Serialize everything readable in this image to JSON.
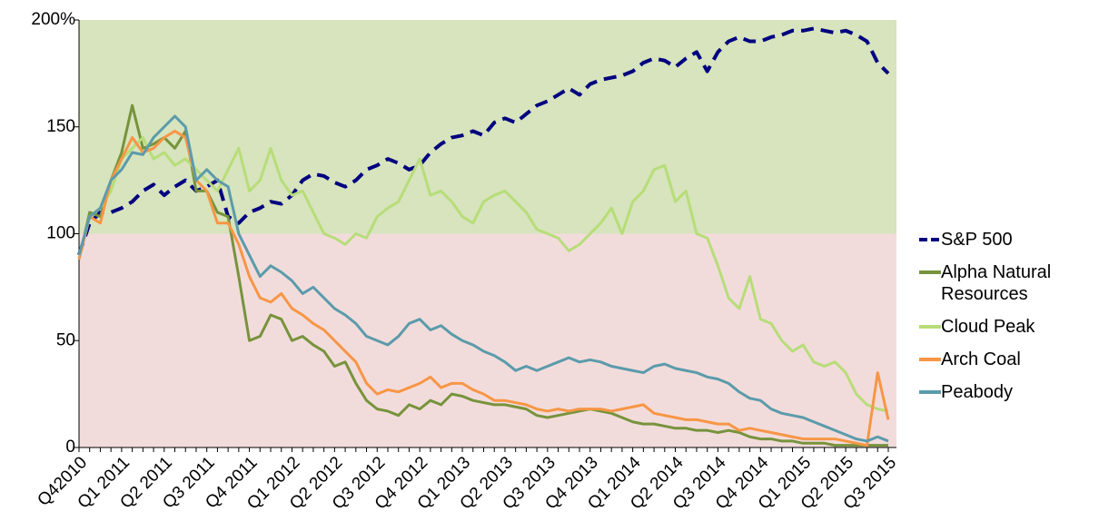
{
  "chart_data": {
    "type": "line",
    "categories": [
      "Q42010",
      null,
      null,
      null,
      "Q1 2011",
      null,
      null,
      null,
      "Q2 2011",
      null,
      null,
      null,
      "Q3 2011",
      null,
      null,
      null,
      "Q4 2011",
      null,
      null,
      null,
      "Q1 2012",
      null,
      null,
      null,
      "Q2 2012",
      null,
      null,
      null,
      "Q3 2012",
      null,
      null,
      null,
      "Q4 2012",
      null,
      null,
      null,
      "Q1 2013",
      null,
      null,
      null,
      "Q2 2013",
      null,
      null,
      null,
      "Q3 2013",
      null,
      null,
      null,
      "Q4 2013",
      null,
      null,
      null,
      "Q1 2014",
      null,
      null,
      null,
      "Q2 2014",
      null,
      null,
      null,
      "Q3 2014",
      null,
      null,
      null,
      "Q4 2014",
      null,
      null,
      null,
      "Q1 2015",
      null,
      null,
      null,
      "Q2 2015",
      null,
      null,
      null,
      "Q3 2015"
    ],
    "series": [
      {
        "name": "S&P 500",
        "color": "#000080",
        "dashed": true,
        "values": [
          90,
          105,
          110,
          110,
          112,
          115,
          120,
          123,
          118,
          122,
          125,
          120,
          122,
          125,
          108,
          105,
          110,
          112,
          115,
          114,
          118,
          125,
          128,
          127,
          124,
          122,
          125,
          130,
          132,
          135,
          133,
          130,
          132,
          138,
          142,
          145,
          146,
          148,
          146,
          152,
          154,
          152,
          156,
          160,
          162,
          165,
          168,
          165,
          170,
          172,
          173,
          174,
          176,
          180,
          182,
          181,
          178,
          182,
          185,
          176,
          185,
          190,
          192,
          190,
          190,
          192,
          193,
          195,
          195,
          196,
          195,
          194,
          195,
          193,
          190,
          180,
          175
        ]
      },
      {
        "name": "Alpha Natural Resources",
        "color": "#77933c",
        "values": [
          88,
          110,
          108,
          125,
          138,
          160,
          140,
          142,
          145,
          140,
          148,
          120,
          120,
          110,
          108,
          80,
          50,
          52,
          62,
          60,
          50,
          52,
          48,
          45,
          38,
          40,
          30,
          22,
          18,
          17,
          15,
          20,
          18,
          22,
          20,
          25,
          24,
          22,
          21,
          20,
          20,
          19,
          18,
          15,
          14,
          15,
          16,
          17,
          18,
          17,
          16,
          14,
          12,
          11,
          11,
          10,
          9,
          9,
          8,
          8,
          7,
          8,
          7,
          5,
          4,
          4,
          3,
          3,
          2,
          2,
          2,
          1,
          1,
          1,
          1,
          1,
          1
        ]
      },
      {
        "name": "Cloud Peak",
        "color": "#b7dd79",
        "values": [
          88,
          108,
          112,
          120,
          135,
          140,
          145,
          135,
          138,
          132,
          135,
          130,
          125,
          120,
          130,
          140,
          120,
          125,
          140,
          125,
          118,
          120,
          110,
          100,
          98,
          95,
          100,
          98,
          108,
          112,
          115,
          125,
          135,
          118,
          120,
          115,
          108,
          105,
          115,
          118,
          120,
          115,
          110,
          102,
          100,
          98,
          92,
          95,
          100,
          105,
          112,
          100,
          115,
          120,
          130,
          132,
          115,
          120,
          100,
          98,
          85,
          70,
          65,
          80,
          60,
          58,
          50,
          45,
          48,
          40,
          38,
          40,
          35,
          25,
          20,
          18,
          17
        ]
      },
      {
        "name": "Arch Coal",
        "color": "#f79646",
        "values": [
          88,
          108,
          105,
          125,
          135,
          145,
          138,
          140,
          145,
          148,
          145,
          125,
          120,
          105,
          105,
          95,
          80,
          70,
          68,
          72,
          65,
          62,
          58,
          55,
          50,
          45,
          40,
          30,
          25,
          27,
          26,
          28,
          30,
          33,
          28,
          30,
          30,
          27,
          25,
          22,
          22,
          21,
          20,
          18,
          17,
          18,
          17,
          18,
          18,
          18,
          17,
          18,
          19,
          20,
          16,
          15,
          14,
          13,
          13,
          12,
          11,
          11,
          8,
          9,
          8,
          7,
          6,
          5,
          4,
          4,
          4,
          4,
          3,
          2,
          1,
          35,
          13
        ]
      },
      {
        "name": "Peabody",
        "color": "#5b9bab",
        "values": [
          90,
          108,
          112,
          125,
          130,
          138,
          137,
          145,
          150,
          155,
          150,
          125,
          130,
          125,
          122,
          100,
          90,
          80,
          85,
          82,
          78,
          72,
          75,
          70,
          65,
          62,
          58,
          52,
          50,
          48,
          52,
          58,
          60,
          55,
          57,
          53,
          50,
          48,
          45,
          43,
          40,
          36,
          38,
          36,
          38,
          40,
          42,
          40,
          41,
          40,
          38,
          37,
          36,
          35,
          38,
          39,
          37,
          36,
          35,
          33,
          32,
          30,
          26,
          23,
          22,
          18,
          16,
          15,
          14,
          12,
          10,
          8,
          6,
          4,
          3,
          5,
          3
        ]
      }
    ],
    "ylim": [
      0,
      200
    ],
    "yticks": [
      0,
      50,
      100,
      150,
      {
        "value": 200,
        "label": "200%"
      }
    ],
    "bands": [
      {
        "from": 0,
        "to": 100,
        "color": "#f2dcdb"
      },
      {
        "from": 100,
        "to": 200,
        "color": "#d7e4bd"
      }
    ]
  }
}
